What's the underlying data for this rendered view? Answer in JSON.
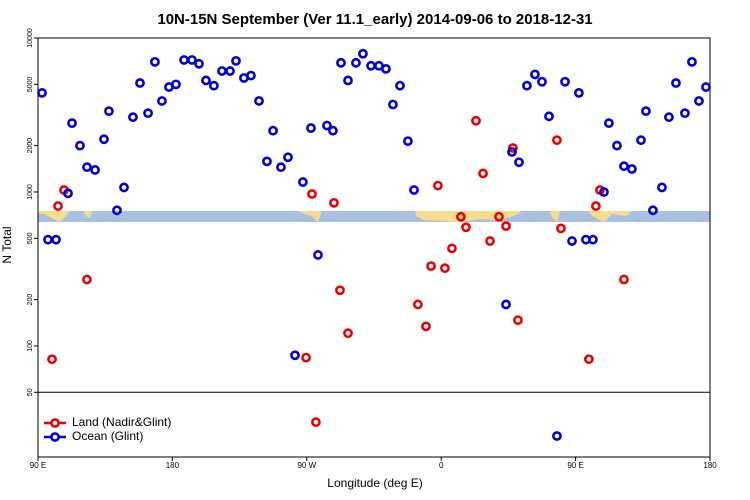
{
  "chart_data": {
    "type": "scatter",
    "title": "10N-15N September (Ver 11.1_early)   2014-09-06 to 2018-12-31",
    "x_label": "Longitude (deg E)",
    "y_label": "N Total",
    "log_y": true,
    "xlim": [
      90,
      540
    ],
    "xticks": [
      {
        "value": 90,
        "label": "90 E"
      },
      {
        "value": 180,
        "label": "180"
      },
      {
        "value": 270,
        "label": "90 W"
      },
      {
        "value": 360,
        "label": "0"
      },
      {
        "value": 450,
        "label": "90 E"
      },
      {
        "value": 540,
        "label": "180"
      }
    ],
    "ylim": [
      19,
      10000
    ],
    "yticks": [
      50,
      100,
      200,
      500,
      1000,
      2000,
      5000,
      10000
    ],
    "legend": "lower left",
    "series": [
      {
        "name": "Land (Nadir&Glint)",
        "color": "#ee0000",
        "x": [
          99.4,
          103.4,
          107.4,
          122.8,
          269.5,
          273.5,
          276.1,
          288.2,
          292.2,
          297.6,
          344.4,
          349.8,
          353.2,
          357.8,
          362.5,
          367.2,
          373.2,
          376.6,
          383.3,
          388.0,
          392.7,
          398.7,
          403.4,
          408.0,
          411.4,
          437.5,
          440.2,
          458.9,
          463.6,
          466.3,
          482.4
        ],
        "values": [
          82,
          810,
          1030,
          270,
          84,
          970,
          32,
          850,
          230,
          121,
          186,
          134,
          330,
          1100,
          320,
          430,
          690,
          590,
          2900,
          1320,
          480,
          690,
          600,
          1930,
          147,
          2170,
          580,
          82,
          810,
          1030,
          270
        ]
      },
      {
        "name": "Ocean (Glint)",
        "color": "#0000dd",
        "x": [
          92.7,
          96.7,
          102.1,
          110.1,
          112.8,
          118.1,
          122.8,
          128.2,
          134.2,
          137.5,
          142.9,
          147.6,
          153.6,
          158.3,
          163.7,
          168.3,
          173.0,
          177.7,
          182.4,
          187.8,
          193.1,
          197.8,
          202.5,
          207.8,
          213.2,
          218.6,
          222.6,
          227.9,
          232.6,
          238.0,
          243.3,
          247.4,
          252.7,
          257.4,
          262.1,
          267.4,
          272.8,
          277.5,
          283.5,
          287.5,
          292.9,
          297.6,
          302.9,
          307.6,
          313.0,
          318.3,
          323.0,
          327.7,
          332.4,
          337.7,
          341.8,
          403.4,
          407.4,
          412.1,
          417.4,
          422.8,
          427.5,
          432.2,
          437.5,
          442.9,
          447.6,
          452.2,
          456.9,
          461.6,
          469.0,
          472.3,
          477.7,
          482.4,
          487.7,
          493.8,
          497.1,
          501.8,
          507.8,
          512.5,
          517.2,
          523.2,
          527.9,
          532.6,
          537.3
        ],
        "values": [
          4400,
          490,
          490,
          980,
          2800,
          2000,
          1450,
          1390,
          2200,
          3350,
          760,
          1070,
          3060,
          5100,
          3250,
          7000,
          3900,
          4800,
          5000,
          7200,
          7200,
          6800,
          5300,
          4900,
          6100,
          6100,
          7100,
          5500,
          5700,
          3900,
          1580,
          2500,
          1450,
          1680,
          87,
          1160,
          2600,
          390,
          2700,
          2500,
          6900,
          5300,
          6900,
          7900,
          6600,
          6600,
          6300,
          3700,
          4900,
          2140,
          1030,
          186,
          1820,
          1560,
          4900,
          5800,
          5200,
          3100,
          26,
          5200,
          480,
          4400,
          490,
          490,
          1000,
          2800,
          2000,
          1470,
          1410,
          2170,
          3350,
          760,
          1070,
          3060,
          5100,
          3250,
          7000,
          3900,
          4800
        ]
      }
    ]
  }
}
